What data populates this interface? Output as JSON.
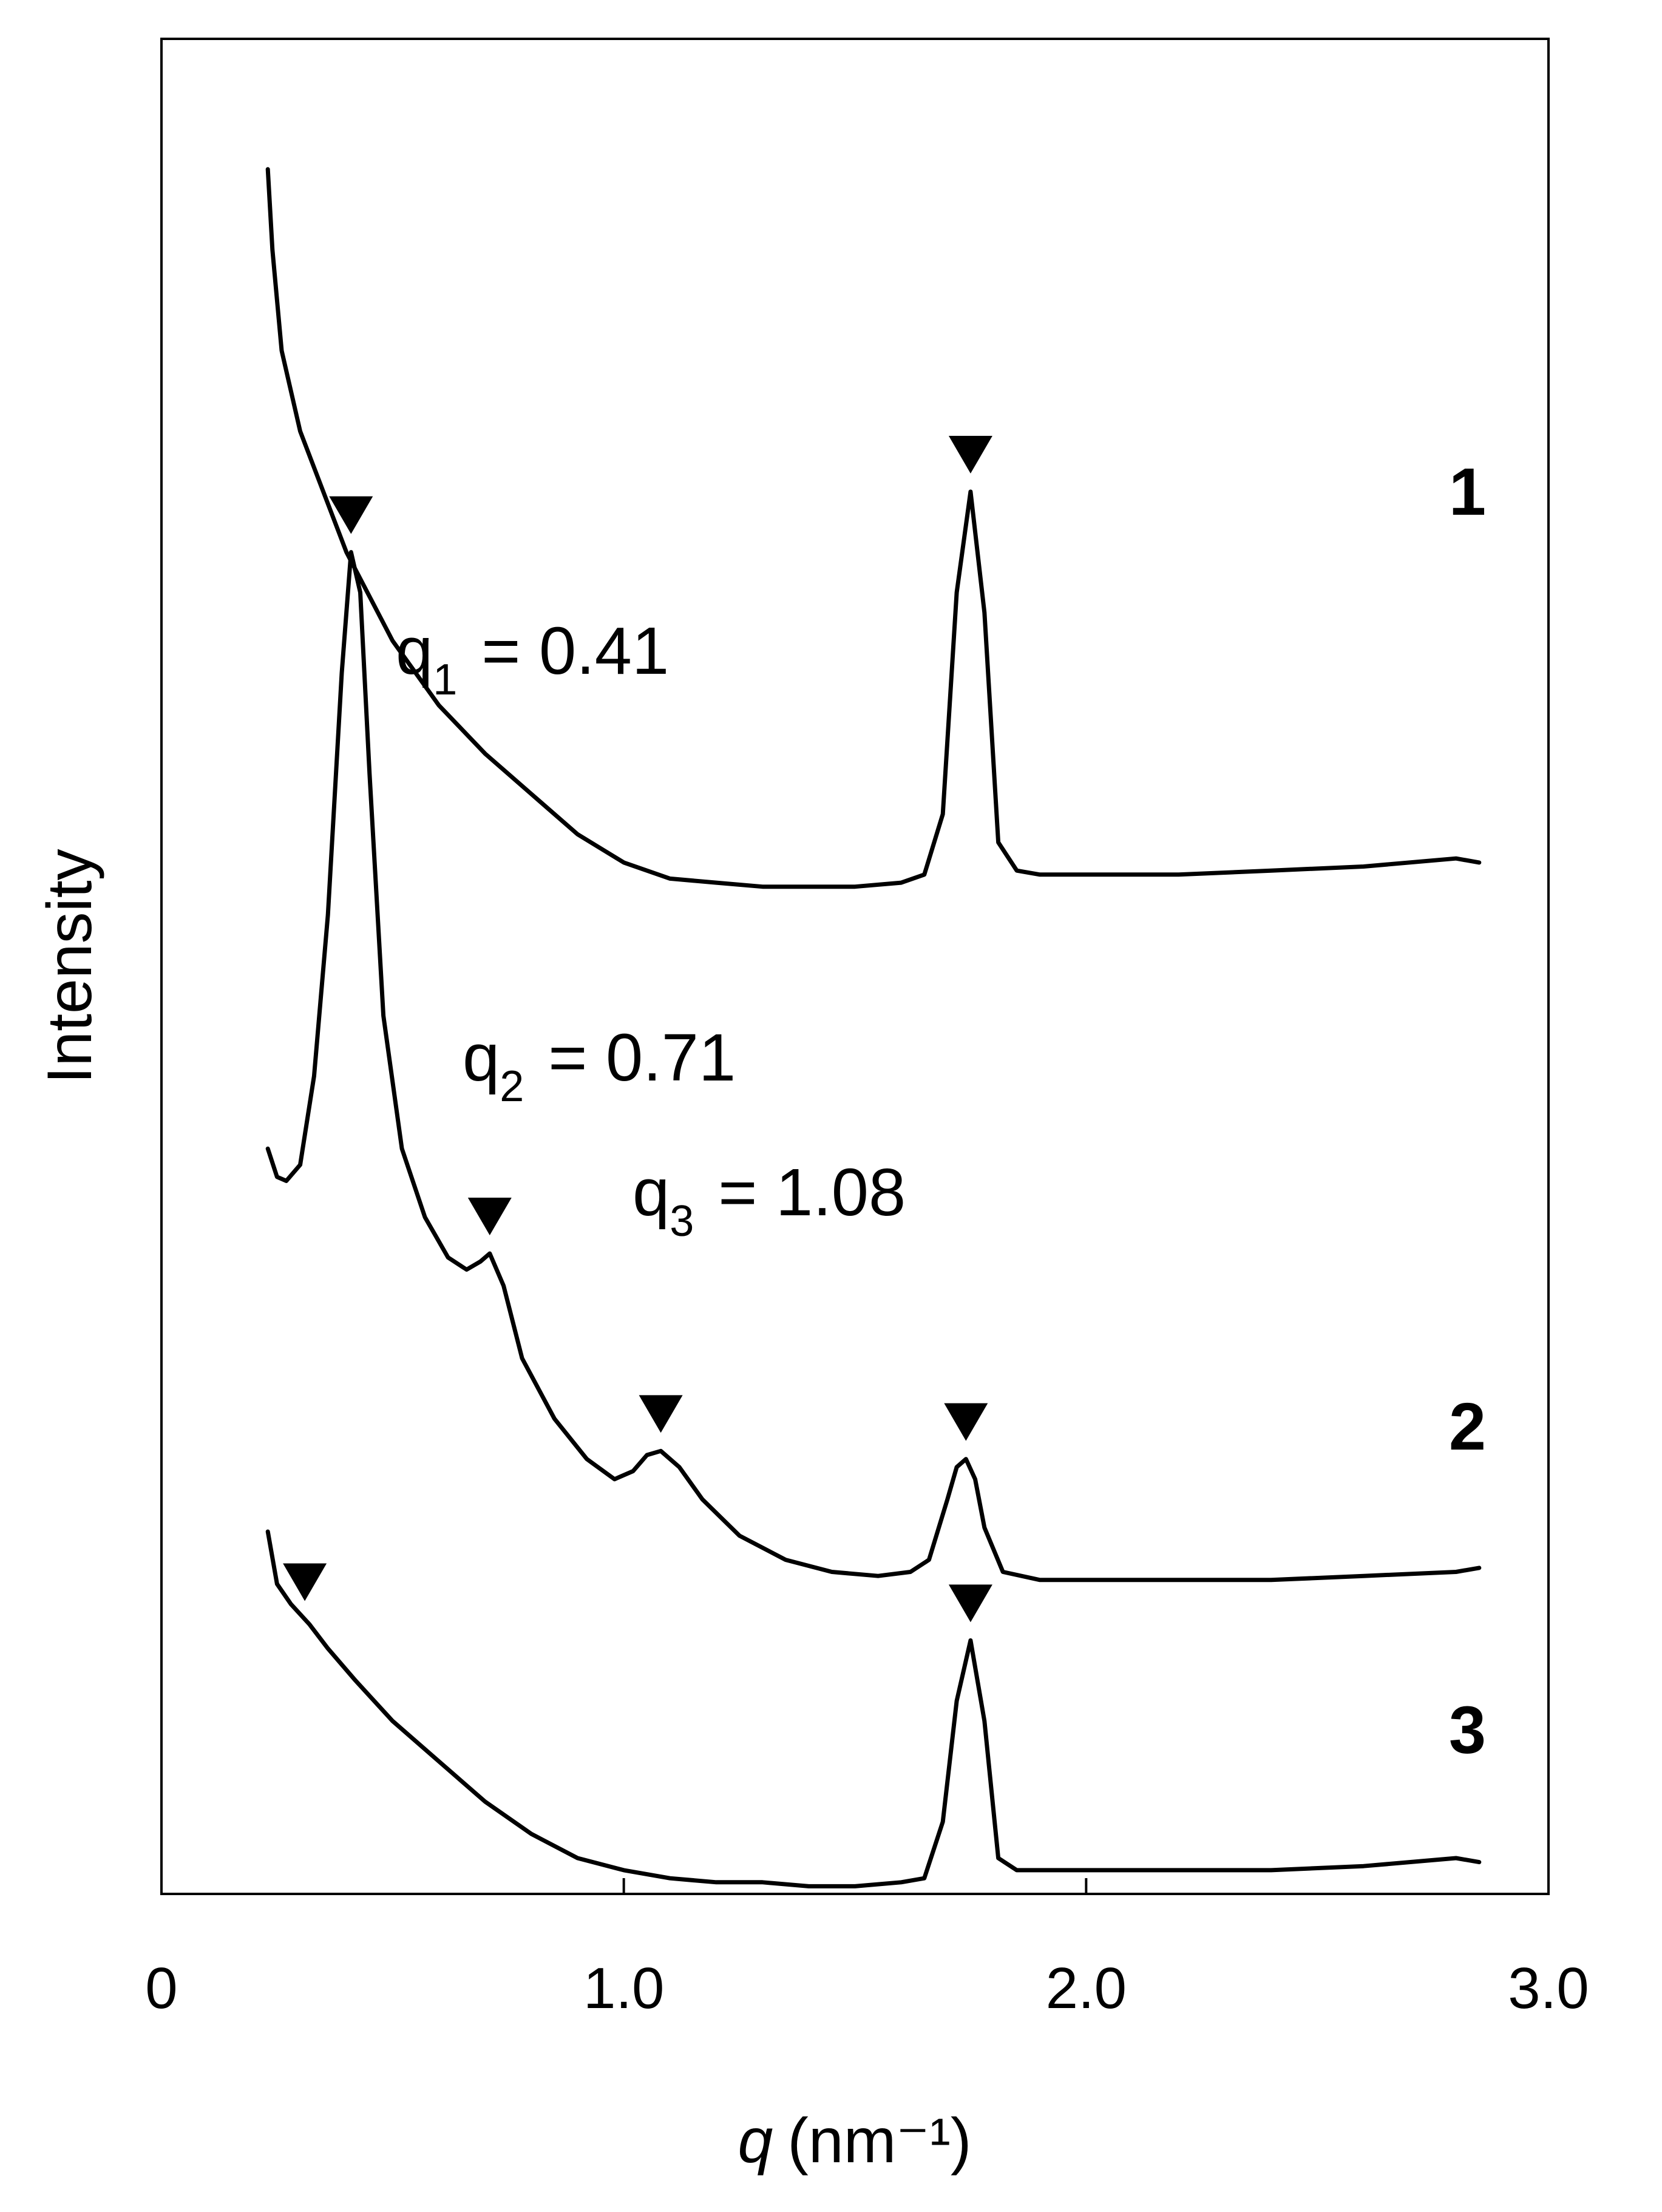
{
  "chart_data": {
    "type": "line",
    "title": "",
    "xlabel": {
      "symbol": "q",
      "unit": "(nm⁻¹)",
      "text": "q (nm⁻¹)"
    },
    "ylabel": "Intensity",
    "xlim": [
      0,
      3.0
    ],
    "x_ticks": [
      0,
      1.0,
      2.0,
      3.0
    ],
    "x_tick_labels": [
      "0",
      "1.0",
      "2.0",
      "3.0"
    ],
    "y_ticks_shown": false,
    "grid": false,
    "series": [
      {
        "name": "1",
        "x": [
          0.23,
          0.24,
          0.26,
          0.3,
          0.35,
          0.4,
          0.5,
          0.6,
          0.7,
          0.8,
          0.9,
          1.0,
          1.1,
          1.2,
          1.3,
          1.4,
          1.5,
          1.6,
          1.65,
          1.69,
          1.72,
          1.75,
          1.78,
          1.81,
          1.85,
          1.9,
          2.0,
          2.2,
          2.4,
          2.6,
          2.8,
          2.85
        ],
        "y": [
          4.55,
          4.35,
          4.1,
          3.9,
          3.75,
          3.6,
          3.38,
          3.22,
          3.1,
          3.0,
          2.9,
          2.83,
          2.79,
          2.78,
          2.77,
          2.77,
          2.77,
          2.78,
          2.8,
          2.95,
          3.5,
          3.75,
          3.45,
          2.88,
          2.81,
          2.8,
          2.8,
          2.8,
          2.81,
          2.82,
          2.84,
          2.83
        ]
      },
      {
        "name": "2",
        "x": [
          0.23,
          0.25,
          0.27,
          0.3,
          0.33,
          0.36,
          0.39,
          0.41,
          0.43,
          0.45,
          0.48,
          0.52,
          0.57,
          0.62,
          0.66,
          0.69,
          0.71,
          0.74,
          0.78,
          0.85,
          0.92,
          0.98,
          1.02,
          1.05,
          1.08,
          1.12,
          1.17,
          1.25,
          1.35,
          1.45,
          1.55,
          1.62,
          1.66,
          1.7,
          1.72,
          1.74,
          1.76,
          1.78,
          1.82,
          1.9,
          2.0,
          2.2,
          2.4,
          2.6,
          2.8,
          2.85
        ],
        "y": [
          2.12,
          2.05,
          2.04,
          2.08,
          2.3,
          2.7,
          3.3,
          3.6,
          3.5,
          3.05,
          2.45,
          2.12,
          1.95,
          1.85,
          1.82,
          1.84,
          1.86,
          1.78,
          1.6,
          1.45,
          1.35,
          1.3,
          1.32,
          1.36,
          1.37,
          1.33,
          1.25,
          1.16,
          1.1,
          1.07,
          1.06,
          1.07,
          1.1,
          1.25,
          1.33,
          1.35,
          1.3,
          1.18,
          1.07,
          1.05,
          1.05,
          1.05,
          1.05,
          1.06,
          1.07,
          1.08
        ]
      },
      {
        "name": "3",
        "x": [
          0.23,
          0.25,
          0.28,
          0.32,
          0.36,
          0.42,
          0.5,
          0.6,
          0.7,
          0.8,
          0.9,
          1.0,
          1.1,
          1.2,
          1.3,
          1.4,
          1.5,
          1.6,
          1.65,
          1.69,
          1.72,
          1.75,
          1.78,
          1.81,
          1.85,
          1.9,
          2.0,
          2.2,
          2.4,
          2.6,
          2.8,
          2.85
        ],
        "y": [
          1.17,
          1.04,
          0.99,
          0.94,
          0.88,
          0.8,
          0.7,
          0.6,
          0.5,
          0.42,
          0.36,
          0.33,
          0.31,
          0.3,
          0.3,
          0.29,
          0.29,
          0.3,
          0.31,
          0.45,
          0.75,
          0.9,
          0.7,
          0.36,
          0.33,
          0.33,
          0.33,
          0.33,
          0.33,
          0.34,
          0.36,
          0.35
        ]
      }
    ],
    "annotations": [
      {
        "symbol": "q",
        "subscript": "1",
        "text": "= 0.41"
      },
      {
        "symbol": "q",
        "subscript": "2",
        "text": "= 0.71"
      },
      {
        "symbol": "q",
        "subscript": "3",
        "text": "= 1.08"
      }
    ],
    "peak_markers": [
      {
        "series": "1",
        "x": 1.75
      },
      {
        "series": "2",
        "x": 0.41
      },
      {
        "series": "2",
        "x": 0.71
      },
      {
        "series": "2",
        "x": 1.08
      },
      {
        "series": "2",
        "x": 1.74
      },
      {
        "series": "3",
        "x": 0.31
      },
      {
        "series": "3",
        "x": 1.75
      }
    ]
  }
}
